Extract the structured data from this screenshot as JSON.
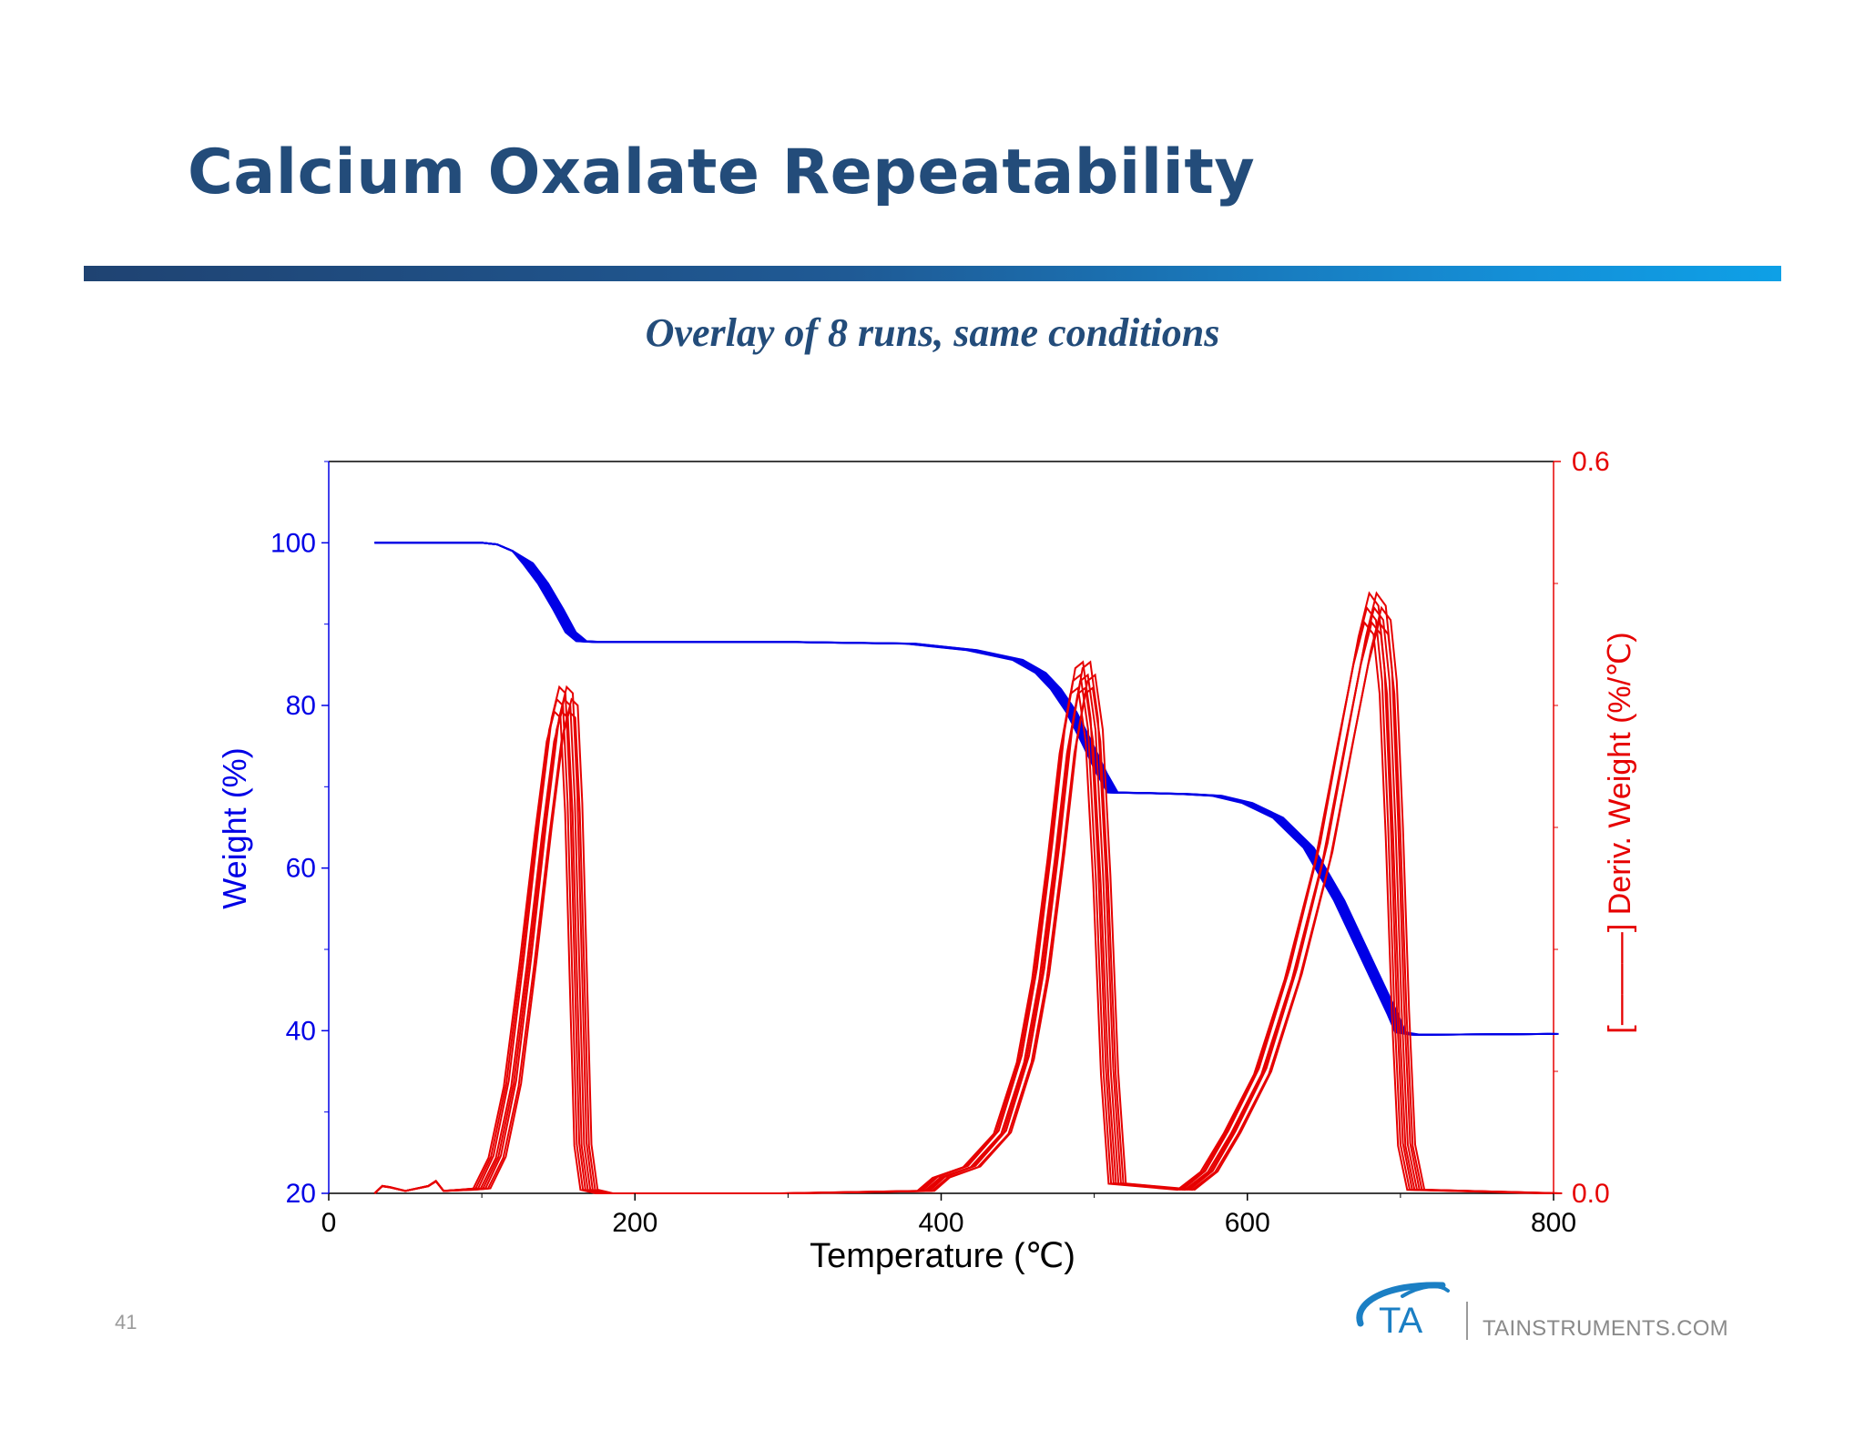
{
  "slide": {
    "title": "Calcium Oxalate Repeatability",
    "subtitle": "Overlay of 8 runs, same conditions",
    "page_number": "41",
    "footer_site": "TAINSTRUMENTS.COM",
    "logo_text": "TA"
  },
  "colors": {
    "title": "#234c7a",
    "weight": "#0000e6",
    "deriv": "#e60000",
    "logo": "#1b7fc4"
  },
  "chart_data": {
    "type": "line",
    "xlabel": "Temperature (℃)",
    "ylabel_left": "Weight (%)",
    "ylabel_right": "[———] Deriv. Weight (%/℃)",
    "xlim": [
      0,
      800
    ],
    "ylim_left": [
      20,
      110
    ],
    "ylim_right": [
      0.0,
      0.6
    ],
    "x_ticks": [
      "0",
      "200",
      "400",
      "600",
      "800"
    ],
    "y_left_ticks": [
      "20",
      "40",
      "60",
      "80",
      "100"
    ],
    "y_right_ticks": [
      "0.0",
      "0.6"
    ],
    "runs": 8,
    "weight_curve": {
      "x": [
        30,
        100,
        110,
        120,
        130,
        140,
        150,
        158,
        165,
        175,
        300,
        380,
        420,
        450,
        465,
        475,
        485,
        495,
        505,
        512,
        540,
        560,
        580,
        600,
        620,
        640,
        660,
        680,
        695,
        700,
        710,
        800
      ],
      "y": [
        100.0,
        100.0,
        99.8,
        99.0,
        97.5,
        95.0,
        91.8,
        89.0,
        87.9,
        87.8,
        87.8,
        87.6,
        86.8,
        85.6,
        84.0,
        82.0,
        79.2,
        75.5,
        71.6,
        69.3,
        69.2,
        69.1,
        68.9,
        68.0,
        66.2,
        62.5,
        56.0,
        48.0,
        42.0,
        39.8,
        39.5,
        39.6
      ]
    },
    "deriv_curve": {
      "x": [
        30,
        35,
        40,
        50,
        65,
        70,
        75,
        90,
        100,
        110,
        120,
        130,
        140,
        148,
        153,
        157,
        160,
        163,
        166,
        170,
        180,
        300,
        390,
        400,
        420,
        440,
        455,
        465,
        475,
        483,
        490,
        495,
        500,
        505,
        510,
        515,
        560,
        575,
        590,
        610,
        630,
        650,
        665,
        675,
        682,
        688,
        692,
        696,
        700,
        704,
        710,
        800
      ],
      "y": [
        0.0,
        0.006,
        0.005,
        0.002,
        0.006,
        0.01,
        0.002,
        0.003,
        0.004,
        0.03,
        0.09,
        0.19,
        0.3,
        0.38,
        0.405,
        0.4,
        0.32,
        0.18,
        0.04,
        0.003,
        0.0,
        0.0,
        0.002,
        0.013,
        0.022,
        0.05,
        0.11,
        0.18,
        0.28,
        0.37,
        0.42,
        0.425,
        0.38,
        0.26,
        0.1,
        0.008,
        0.003,
        0.018,
        0.05,
        0.1,
        0.18,
        0.28,
        0.38,
        0.445,
        0.48,
        0.47,
        0.42,
        0.3,
        0.15,
        0.04,
        0.003,
        0.0
      ]
    }
  }
}
